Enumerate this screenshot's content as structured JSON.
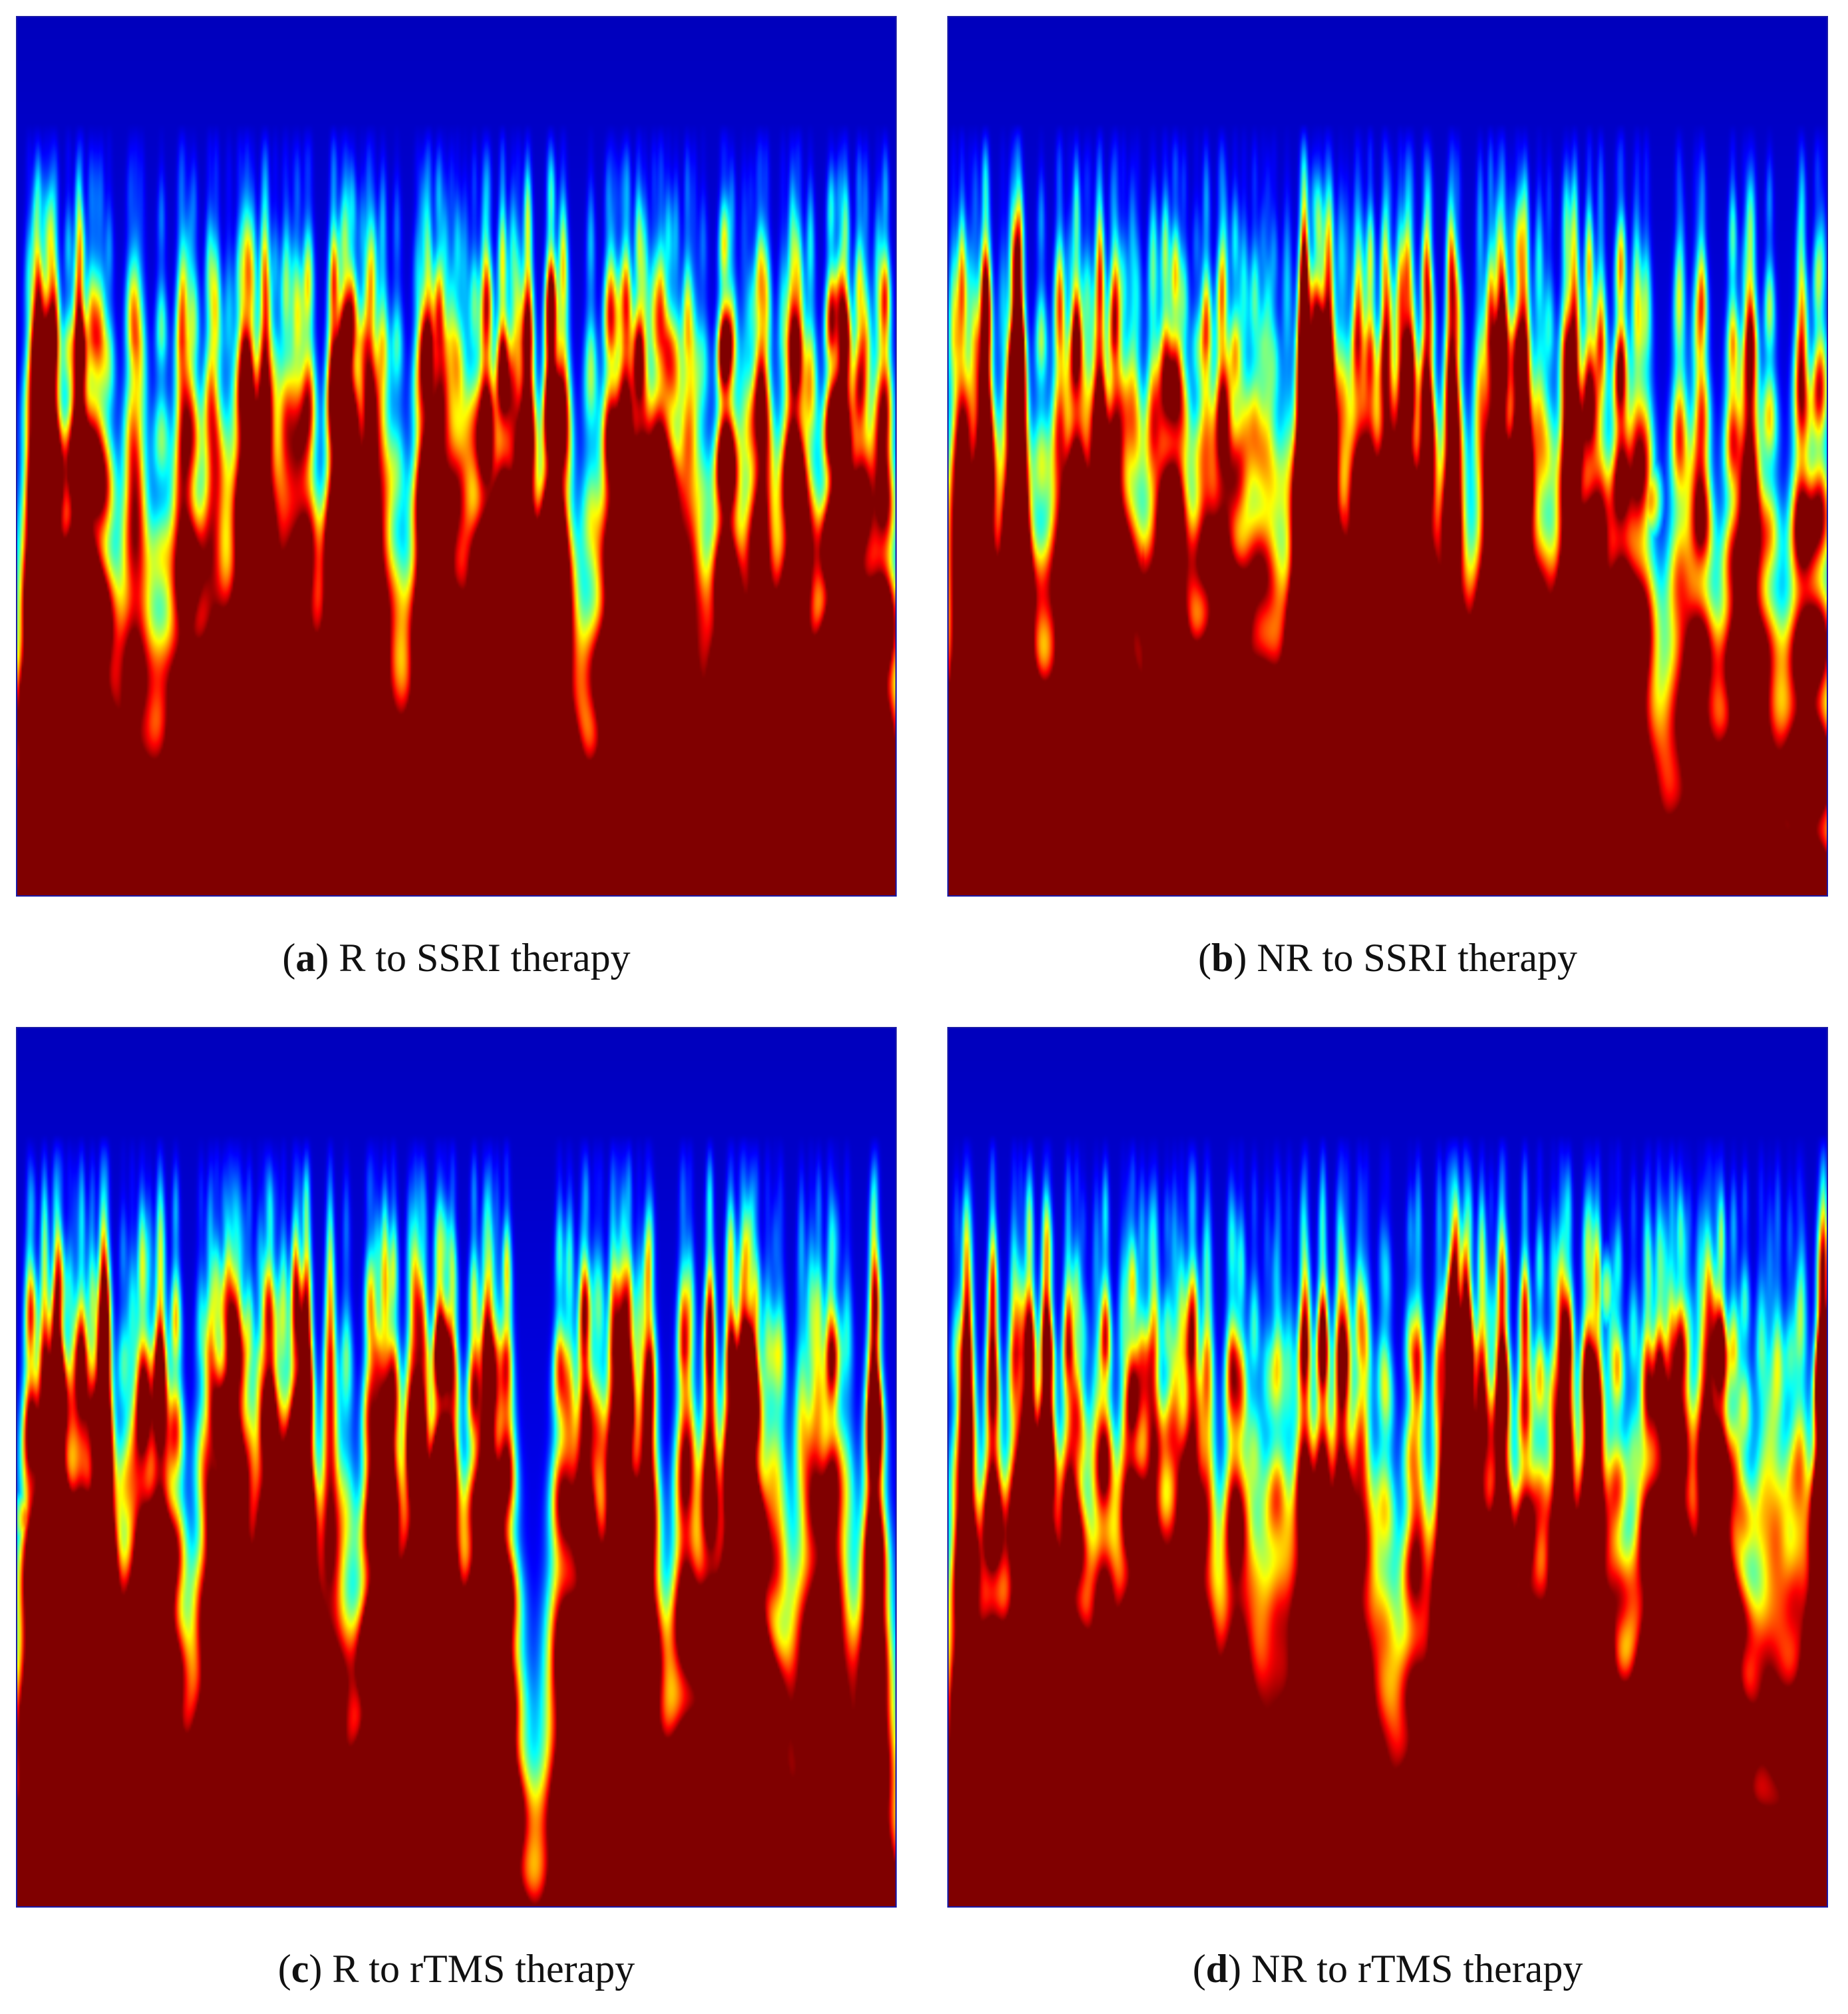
{
  "figure": {
    "panels": [
      {
        "letter": "a",
        "label_open": "(",
        "label_close": ")",
        "caption": " R to SSRI therapy"
      },
      {
        "letter": "b",
        "label_open": "(",
        "label_close": ")",
        "caption": " NR to SSRI therapy"
      },
      {
        "letter": "c",
        "label_open": "(",
        "label_close": ")",
        "caption": " R to rTMS therapy"
      },
      {
        "letter": "d",
        "label_open": "(",
        "label_close": ")",
        "caption": " NR to rTMS therapy"
      }
    ]
  },
  "colormap": "jet",
  "chart_data": [
    {
      "type": "heatmap",
      "panel": "a",
      "title": "",
      "xlabel": "",
      "ylabel": "",
      "value_range": [
        0,
        1
      ],
      "seed": 11,
      "hotspots": [
        {
          "x": 0.24,
          "y": 0.96,
          "w": 0.045,
          "h": 0.06,
          "v": 0.98
        },
        {
          "x": 0.28,
          "y": 0.9,
          "w": 0.03,
          "h": 0.1,
          "v": 0.85
        },
        {
          "x": 0.4,
          "y": 0.96,
          "w": 0.05,
          "h": 0.06,
          "v": 0.95
        },
        {
          "x": 0.43,
          "y": 0.89,
          "w": 0.025,
          "h": 0.09,
          "v": 0.88
        },
        {
          "x": 0.3,
          "y": 0.8,
          "w": 0.02,
          "h": 0.06,
          "v": 0.7
        },
        {
          "x": 0.88,
          "y": 0.85,
          "w": 0.03,
          "h": 0.05,
          "v": 0.65
        },
        {
          "x": 0.76,
          "y": 0.8,
          "w": 0.02,
          "h": 0.05,
          "v": 0.62
        },
        {
          "x": 0.01,
          "y": 0.84,
          "w": 0.02,
          "h": 0.05,
          "v": 0.72
        },
        {
          "x": 0.1,
          "y": 0.53,
          "w": 0.015,
          "h": 0.04,
          "v": 0.6
        },
        {
          "x": 0.41,
          "y": 0.52,
          "w": 0.02,
          "h": 0.04,
          "v": 0.55
        }
      ]
    },
    {
      "type": "heatmap",
      "panel": "b",
      "title": "",
      "xlabel": "",
      "ylabel": "",
      "value_range": [
        0,
        1
      ],
      "seed": 23,
      "hotspots": [
        {
          "x": 0.22,
          "y": 0.64,
          "w": 0.015,
          "h": 0.07,
          "v": 0.98
        },
        {
          "x": 0.45,
          "y": 0.58,
          "w": 0.012,
          "h": 0.07,
          "v": 0.9
        },
        {
          "x": 0.52,
          "y": 0.55,
          "w": 0.012,
          "h": 0.05,
          "v": 0.95
        },
        {
          "x": 0.64,
          "y": 0.57,
          "w": 0.025,
          "h": 0.07,
          "v": 0.85
        },
        {
          "x": 0.13,
          "y": 0.62,
          "w": 0.012,
          "h": 0.06,
          "v": 0.7
        },
        {
          "x": 0.8,
          "y": 0.55,
          "w": 0.015,
          "h": 0.05,
          "v": 0.72
        },
        {
          "x": 0.05,
          "y": 0.52,
          "w": 0.01,
          "h": 0.04,
          "v": 0.6
        }
      ]
    },
    {
      "type": "heatmap",
      "panel": "c",
      "title": "",
      "xlabel": "",
      "ylabel": "",
      "value_range": [
        0,
        1
      ],
      "seed": 37,
      "hotspots": [
        {
          "x": 0.55,
          "y": 0.88,
          "w": 0.02,
          "h": 0.16,
          "v": 0.98
        },
        {
          "x": 0.55,
          "y": 0.97,
          "w": 0.04,
          "h": 0.04,
          "v": 0.95
        },
        {
          "x": 0.55,
          "y": 0.58,
          "w": 0.01,
          "h": 0.06,
          "v": 0.8
        },
        {
          "x": 0.01,
          "y": 0.56,
          "w": 0.015,
          "h": 0.04,
          "v": 0.78
        },
        {
          "x": 0.05,
          "y": 0.57,
          "w": 0.01,
          "h": 0.04,
          "v": 0.72
        },
        {
          "x": 0.4,
          "y": 0.58,
          "w": 0.012,
          "h": 0.04,
          "v": 0.75
        },
        {
          "x": 0.87,
          "y": 0.72,
          "w": 0.015,
          "h": 0.05,
          "v": 0.62
        },
        {
          "x": 0.17,
          "y": 0.66,
          "w": 0.015,
          "h": 0.04,
          "v": 0.6
        },
        {
          "x": 0.06,
          "y": 0.92,
          "w": 0.04,
          "h": 0.04,
          "v": 0.6
        }
      ]
    },
    {
      "type": "heatmap",
      "panel": "d",
      "title": "",
      "xlabel": "",
      "ylabel": "",
      "value_range": [
        0,
        1
      ],
      "seed": 53,
      "hotspots": [
        {
          "x": 0.4,
          "y": 0.92,
          "w": 0.03,
          "h": 0.08,
          "v": 0.98
        },
        {
          "x": 0.44,
          "y": 0.87,
          "w": 0.02,
          "h": 0.05,
          "v": 0.85
        },
        {
          "x": 0.56,
          "y": 0.96,
          "w": 0.02,
          "h": 0.05,
          "v": 0.8
        },
        {
          "x": 0.89,
          "y": 0.97,
          "w": 0.03,
          "h": 0.04,
          "v": 0.98
        },
        {
          "x": 0.99,
          "y": 0.97,
          "w": 0.01,
          "h": 0.03,
          "v": 0.75
        },
        {
          "x": 0.82,
          "y": 0.86,
          "w": 0.015,
          "h": 0.05,
          "v": 0.6
        },
        {
          "x": 0.5,
          "y": 0.7,
          "w": 0.015,
          "h": 0.05,
          "v": 0.62
        },
        {
          "x": 0.75,
          "y": 0.3,
          "w": 0.01,
          "h": 0.05,
          "v": 0.55
        }
      ]
    }
  ]
}
